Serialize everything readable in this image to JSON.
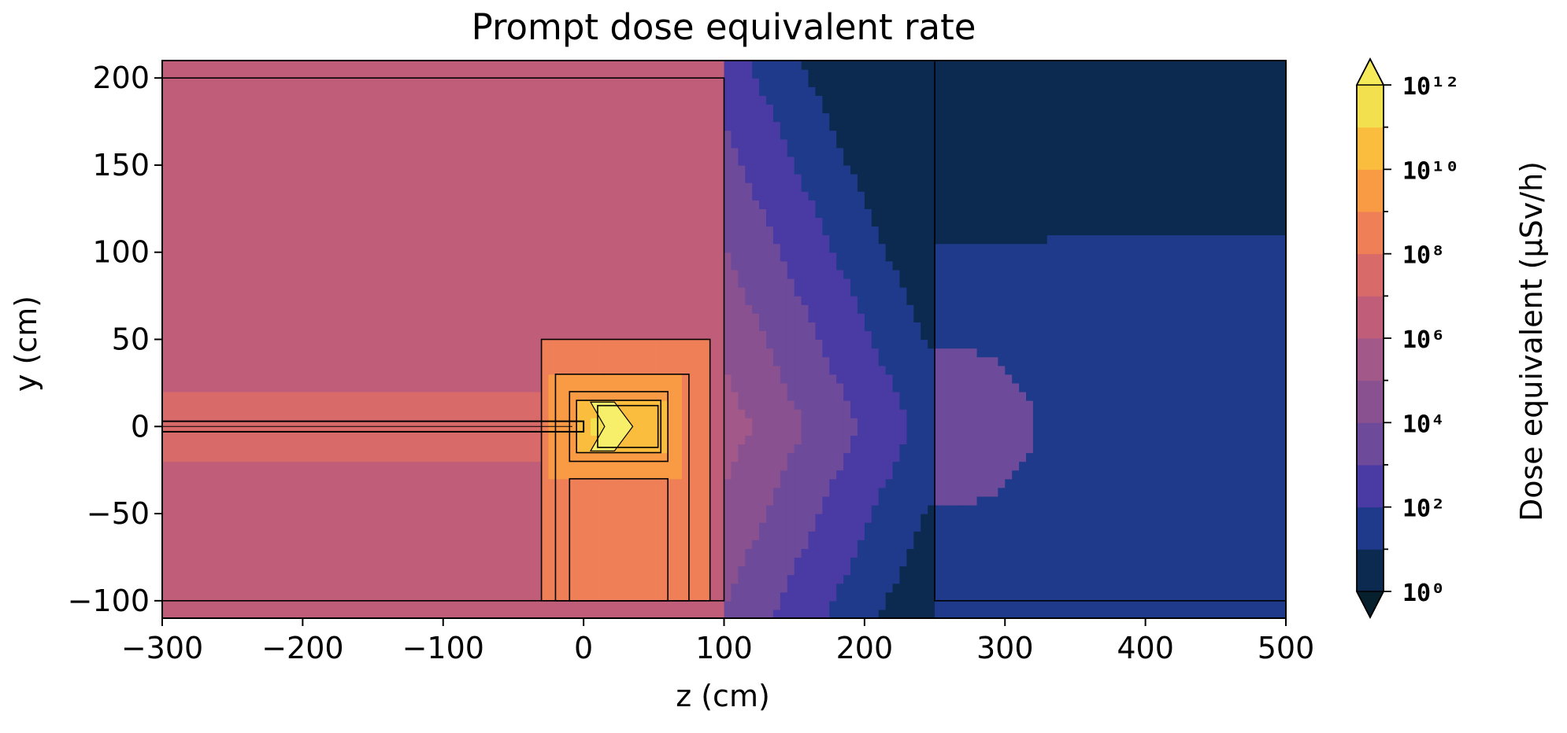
{
  "chart_data": {
    "type": "heatmap",
    "title": "Prompt dose equivalent rate",
    "xlabel": "z (cm)",
    "ylabel": "y (cm)",
    "xlim": [
      -300,
      500
    ],
    "ylim": [
      -110,
      210
    ],
    "x_ticks": [
      -300,
      -200,
      -100,
      0,
      100,
      200,
      300,
      400,
      500
    ],
    "x_tick_labels": [
      "−300",
      "−200",
      "−100",
      "0",
      "100",
      "200",
      "300",
      "400",
      "500"
    ],
    "y_ticks": [
      -100,
      -50,
      0,
      50,
      100,
      150,
      200
    ],
    "y_tick_labels": [
      "−100",
      "−50",
      "0",
      "50",
      "100",
      "150",
      "200"
    ],
    "colorbar": {
      "label": "Dose equivalent (μSv/h)",
      "scale": "log",
      "range": [
        1,
        1000000000000.0
      ],
      "tick_labels": [
        "10⁰",
        "10²",
        "10⁴",
        "10⁶",
        "10⁸",
        "10¹⁰",
        "10¹²"
      ],
      "level_colors": [
        "#0c2a50",
        "#1f3a8a",
        "#4a3aa3",
        "#6d4a9a",
        "#8a5190",
        "#a3588a",
        "#c05e7a",
        "#d96a6a",
        "#ef7f56",
        "#f99a45",
        "#fbbd3e",
        "#f3e04e"
      ],
      "extend_low_color": "#06202e",
      "extend_high_color": "#f5ea5a"
    },
    "dose_field": {
      "levels_log10": [
        0,
        1,
        2,
        3,
        4,
        5,
        6,
        7,
        8,
        9,
        10,
        11,
        12
      ],
      "source_position": {
        "z": 15,
        "y": 0
      },
      "shield_boundary_z": 250
    },
    "geometry_outlines": [
      {
        "name": "room",
        "z": [
          -300,
          100
        ],
        "y": [
          -100,
          200
        ]
      },
      {
        "name": "outer-shield",
        "z": [
          -30,
          90
        ],
        "y": [
          -100,
          50
        ]
      },
      {
        "name": "inner-shield",
        "z": [
          -20,
          75
        ],
        "y": [
          -100,
          30
        ]
      },
      {
        "name": "target-housing",
        "z": [
          -10,
          60
        ],
        "y": [
          -20,
          20
        ]
      },
      {
        "name": "target-box",
        "z": [
          -5,
          55
        ],
        "y": [
          -15,
          15
        ]
      },
      {
        "name": "target-inner",
        "z": [
          10,
          53
        ],
        "y": [
          -12,
          12
        ]
      },
      {
        "name": "support-stand",
        "z": [
          -10,
          60
        ],
        "y": [
          -100,
          -30
        ]
      },
      {
        "name": "beam-pipe",
        "z": [
          -300,
          0
        ],
        "y": [
          -3,
          3
        ]
      },
      {
        "name": "shield-wall",
        "z": [
          250,
          500
        ],
        "y": [
          -100,
          210
        ]
      }
    ]
  }
}
